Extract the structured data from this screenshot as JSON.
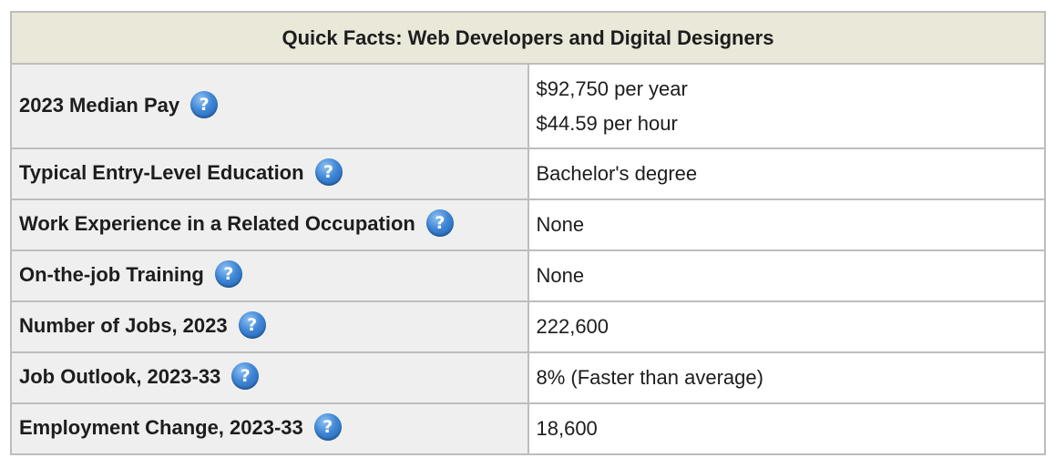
{
  "table": {
    "title": "Quick Facts: Web Developers and Digital Designers",
    "help_glyph": "?",
    "rows": [
      {
        "label": "2023 Median Pay",
        "value_lines": [
          "$92,750 per year",
          "$44.59 per hour"
        ]
      },
      {
        "label": "Typical Entry-Level Education",
        "value": "Bachelor's degree"
      },
      {
        "label": "Work Experience in a Related Occupation",
        "value": "None"
      },
      {
        "label": "On-the-job Training",
        "value": "None"
      },
      {
        "label": "Number of Jobs, 2023",
        "value": "222,600"
      },
      {
        "label": "Job Outlook, 2023-33",
        "value": "8% (Faster than average)"
      },
      {
        "label": "Employment Change, 2023-33",
        "value": "18,600"
      }
    ]
  },
  "colors": {
    "header_bg": "#e9e8d9",
    "label_bg": "#efefef",
    "border": "#bdbdbd",
    "help_icon": "#3f86d6"
  }
}
